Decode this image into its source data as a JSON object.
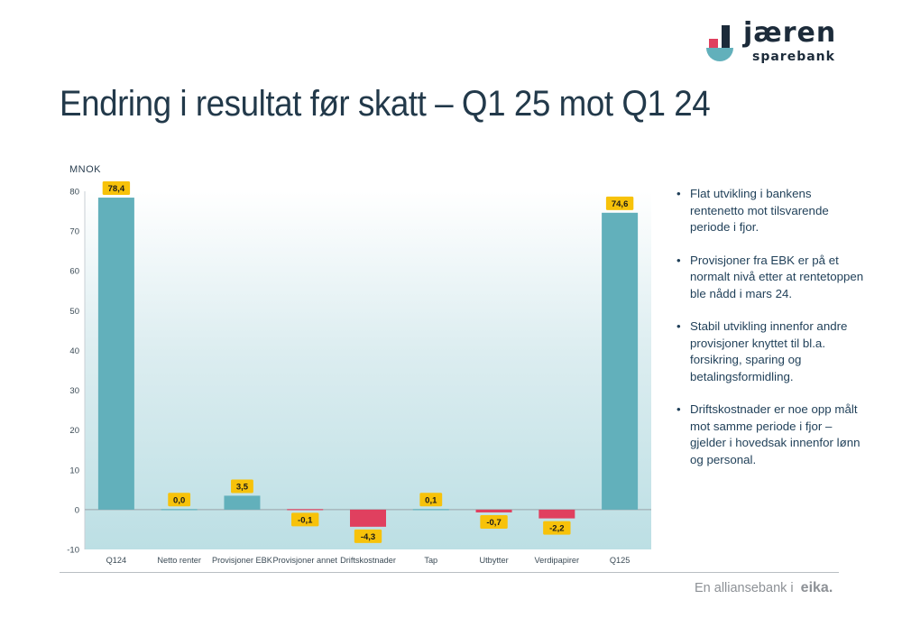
{
  "brand": {
    "name": "jæren",
    "sub": "sparebank"
  },
  "title": "Endring i resultat før skatt – Q1 25 mot Q1 24",
  "unit_label": "MNOK",
  "colors": {
    "base": "#62b0bb",
    "positive": "#62b0bb",
    "negative": "#e0405f",
    "label_bg": "#f7c20a",
    "title": "#22394a"
  },
  "chart_data": {
    "type": "bar",
    "subtype": "waterfall",
    "categories": [
      "Q124",
      "Netto renter",
      "Provisjoner EBK",
      "Provisjoner annet",
      "Driftskostnader",
      "Tap",
      "Utbytter",
      "Verdipapirer",
      "Q125"
    ],
    "values": [
      78.4,
      0.0,
      3.5,
      -0.1,
      -4.3,
      0.1,
      -0.7,
      -2.2,
      74.6
    ],
    "data_labels": [
      "78,4",
      "0,0",
      "3,5",
      "-0,1",
      "-4,3",
      "0,1",
      "-0,7",
      "-2,2",
      "74,6"
    ],
    "yticks": [
      80,
      70,
      60,
      50,
      40,
      30,
      20,
      10,
      0,
      -10
    ],
    "ylim": [
      -10,
      80
    ],
    "ylabel": "MNOK",
    "xlabel": "",
    "title": "",
    "grid": false,
    "legend": "none"
  },
  "bullets": [
    "Flat utvikling i bankens rentenetto mot tilsvarende periode i fjor.",
    "Provisjoner fra EBK er på et normalt nivå etter at rentetoppen ble nådd i mars 24.",
    "Stabil utvikling innenfor andre provisjoner knyttet til bl.a. forsikring, sparing og betalingsformidling.",
    "Driftskostnader er noe opp målt mot samme periode i fjor – gjelder i hovedsak innenfor lønn og personal."
  ],
  "footer": {
    "text": "En alliansebank i",
    "brand": "eika."
  }
}
